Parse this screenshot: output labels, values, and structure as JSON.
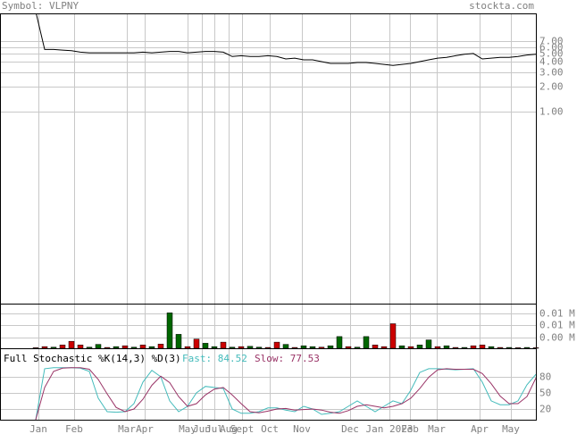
{
  "header": {
    "symbol": "Symbol: VLPNY",
    "site": "stockta.com"
  },
  "chart_data": [
    {
      "type": "line",
      "log_scale": true,
      "color": "#000000",
      "grid": true,
      "xlim": [
        -4,
        56
      ],
      "ylim": [
        0.0049,
        15.2
      ],
      "yticks": [
        {
          "value": 7,
          "label": "7.00"
        },
        {
          "value": 6,
          "label": "6.00"
        },
        {
          "value": 5,
          "label": "5.00"
        },
        {
          "value": 4,
          "label": "4.00"
        },
        {
          "value": 3,
          "label": "3.00"
        },
        {
          "value": 2,
          "label": "2.00"
        },
        {
          "value": 1,
          "label": "1.00"
        }
      ],
      "values": [
        16,
        5.6,
        5.6,
        5.5,
        5.4,
        5.2,
        5.1,
        5.1,
        5.1,
        5.1,
        5.1,
        5.1,
        5.2,
        5.1,
        5.2,
        5.3,
        5.3,
        5.1,
        5.2,
        5.3,
        5.3,
        5.2,
        4.6,
        4.7,
        4.6,
        4.6,
        4.7,
        4.6,
        4.3,
        4.4,
        4.2,
        4.2,
        4.0,
        3.8,
        3.8,
        3.8,
        3.9,
        3.9,
        3.8,
        3.7,
        3.6,
        3.7,
        3.8,
        4.0,
        4.2,
        4.4,
        4.5,
        4.7,
        4.9,
        5.0,
        4.3,
        4.4,
        4.5,
        4.5,
        4.6,
        4.8,
        4.9
      ]
    },
    {
      "type": "bar",
      "grid": true,
      "xlim": [
        -4,
        56
      ],
      "ylim": [
        0,
        0.016
      ],
      "yticks": [
        {
          "value": 0.0125,
          "label": "0.01 M"
        },
        {
          "value": 0.0083,
          "label": "0.01 M"
        },
        {
          "value": 0.004,
          "label": "0.00 M"
        }
      ],
      "values": [
        0.0002,
        0.0006,
        0.0004,
        0.0012,
        0.0025,
        0.0012,
        0.0004,
        0.0014,
        0.0003,
        0.0006,
        0.0009,
        0.0004,
        0.0012,
        0.0006,
        0.0015,
        0.0127,
        0.005,
        0.0006,
        0.0033,
        0.0018,
        0.0006,
        0.0022,
        0.0004,
        0.0006,
        0.0007,
        0.0004,
        0.0003,
        0.0022,
        0.0014,
        0.0003,
        0.0009,
        0.0006,
        0.0004,
        0.0009,
        0.0042,
        0.0006,
        0.0004,
        0.0042,
        0.0012,
        0.0006,
        0.0088,
        0.0009,
        0.0006,
        0.0012,
        0.003,
        0.0006,
        0.0009,
        0.0003,
        0.0003,
        0.0009,
        0.0012,
        0.0006,
        0.0003,
        0.0003,
        0.0002,
        0.0003,
        0.0002
      ],
      "colors": [
        "#cc0000",
        "#cc0000",
        "#006600",
        "#cc0000",
        "#cc0000",
        "#cc0000",
        "#006600",
        "#006600",
        "#cc0000",
        "#006600",
        "#cc0000",
        "#006600",
        "#cc0000",
        "#006600",
        "#cc0000",
        "#006600",
        "#006600",
        "#cc0000",
        "#cc0000",
        "#006600",
        "#006600",
        "#cc0000",
        "#006600",
        "#cc0000",
        "#006600",
        "#006600",
        "#cc0000",
        "#cc0000",
        "#006600",
        "#cc0000",
        "#006600",
        "#006600",
        "#cc0000",
        "#006600",
        "#006600",
        "#cc0000",
        "#006600",
        "#006600",
        "#cc0000",
        "#cc0000",
        "#cc0000",
        "#006600",
        "#cc0000",
        "#006600",
        "#006600",
        "#cc0000",
        "#006600",
        "#cc0000",
        "#006600",
        "#cc0000",
        "#cc0000",
        "#006600",
        "#cc0000",
        "#006600",
        "#cc0000",
        "#006600",
        "#cc0000"
      ]
    },
    {
      "type": "line",
      "title": "Full Stochastic %K(14,3) %D(3)",
      "grid": true,
      "xlim": [
        -4,
        56
      ],
      "ylim": [
        0,
        133
      ],
      "yticks": [
        80,
        50,
        20
      ],
      "xticks": [
        {
          "value": 0.3,
          "label": "Jan"
        },
        {
          "value": 4.3,
          "label": "Feb"
        },
        {
          "value": 10.2,
          "label": "Mar"
        },
        {
          "value": 12.2,
          "label": "Apr"
        },
        {
          "value": 17,
          "label": "May"
        },
        {
          "value": 18.6,
          "label": "Jun"
        },
        {
          "value": 20,
          "label": "Jul"
        },
        {
          "value": 21.6,
          "label": "Aug"
        },
        {
          "value": 23.1,
          "label": "Sept"
        },
        {
          "value": 26.2,
          "label": "Oct"
        },
        {
          "value": 29.8,
          "label": "Nov"
        },
        {
          "value": 35.2,
          "label": "Dec"
        },
        {
          "value": 39.6,
          "label": "Jan 2023"
        },
        {
          "value": 41.9,
          "label": "Feb"
        },
        {
          "value": 44.9,
          "label": "Mar"
        },
        {
          "value": 49.7,
          "label": "Apr"
        },
        {
          "value": 53.2,
          "label": "May"
        }
      ],
      "series": [
        {
          "name": "Fast:",
          "color": "#44bbbb",
          "values": [
            0,
            95,
            97,
            97,
            97,
            96,
            90,
            40,
            15,
            14,
            15,
            30,
            70,
            92,
            80,
            35,
            15,
            25,
            50,
            62,
            60,
            58,
            20,
            12,
            12,
            15,
            22,
            22,
            18,
            15,
            25,
            20,
            10,
            12,
            15,
            25,
            35,
            25,
            15,
            25,
            35,
            30,
            55,
            88,
            95,
            95,
            94,
            93,
            94,
            95,
            70,
            35,
            28,
            28,
            35,
            65,
            84.52
          ]
        },
        {
          "name": "Slow:",
          "color": "#993366",
          "values": [
            0,
            60,
            90,
            96,
            97,
            97,
            94,
            75,
            48,
            23,
            15,
            20,
            38,
            64,
            81,
            69,
            43,
            25,
            30,
            46,
            57,
            60,
            46,
            30,
            15,
            13,
            16,
            20,
            21,
            18,
            19,
            20,
            18,
            14,
            12,
            17,
            25,
            28,
            25,
            22,
            25,
            30,
            40,
            58,
            79,
            93,
            95,
            94,
            94,
            94,
            86,
            67,
            44,
            30,
            30,
            43,
            77.53
          ]
        }
      ]
    }
  ]
}
